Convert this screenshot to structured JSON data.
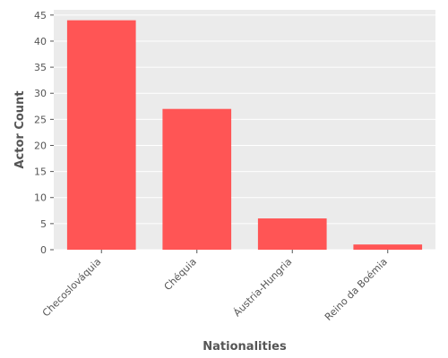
{
  "chart_data": {
    "type": "bar",
    "title": "",
    "xlabel": "Nationalities",
    "ylabel": "Actor Count",
    "categories": [
      "Checoslováquia",
      "Chéquia",
      "Áustria-Hungria",
      "Reino da Boémia"
    ],
    "values": [
      44,
      27,
      6,
      1
    ],
    "ylim": [
      0,
      46
    ],
    "yticks": [
      0,
      5,
      10,
      15,
      20,
      25,
      30,
      35,
      40,
      45
    ],
    "grid": true,
    "bar_color": "#ff5555",
    "background_color": "#ebebeb",
    "grid_color": "#ffffff"
  }
}
